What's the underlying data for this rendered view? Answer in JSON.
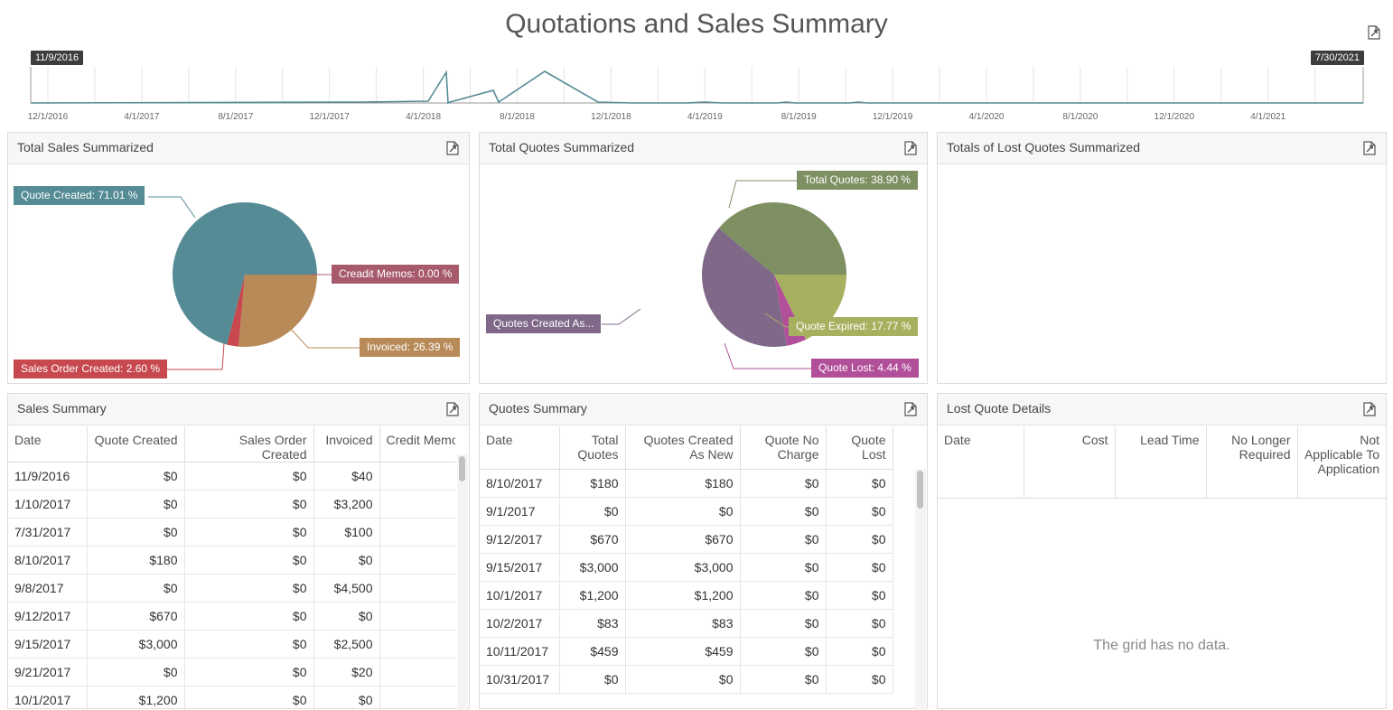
{
  "page": {
    "title": "Quotations and Sales Summary"
  },
  "timeline": {
    "start_date": "11/9/2016",
    "end_date": "7/30/2021",
    "ticks": [
      "12/1/2016",
      "4/1/2017",
      "8/1/2017",
      "12/1/2017",
      "4/1/2018",
      "8/1/2018",
      "12/1/2018",
      "4/1/2019",
      "8/1/2019",
      "12/1/2019",
      "4/1/2020",
      "8/1/2020",
      "12/1/2020",
      "4/1/2021"
    ]
  },
  "total_sales": {
    "title": "Total Sales Summarized",
    "slices": [
      {
        "label": "Quote Created: 71.01 %",
        "value": 71.01,
        "color": "#548b94"
      },
      {
        "label": "Creadit Memos: 0.00 %",
        "value": 0.0,
        "color": "#a85a6d"
      },
      {
        "label": "Invoiced: 26.39 %",
        "value": 26.39,
        "color": "#b78a57"
      },
      {
        "label": "Sales Order Created: 2.60 %",
        "value": 2.6,
        "color": "#c7484e"
      }
    ]
  },
  "total_quotes": {
    "title": "Total Quotes Summarized",
    "slices": [
      {
        "label": "Total Quotes: 38.90 %",
        "value": 38.9,
        "color": "#7e8f62"
      },
      {
        "label": "Quote Expired: 17.77 %",
        "value": 17.77,
        "color": "#a7b05e"
      },
      {
        "label": "Quote Lost: 4.44 %",
        "value": 4.44,
        "color": "#b24f9a"
      },
      {
        "label": "Quotes Created As...",
        "value": 38.89,
        "color": "#7f6888"
      }
    ]
  },
  "lost_quotes_totals": {
    "title": "Totals of Lost Quotes Summarized"
  },
  "sales_summary": {
    "title": "Sales Summary",
    "columns": [
      "Date",
      "Quote Created",
      "Sales Order Created",
      "Invoiced",
      "Credit Memo"
    ],
    "rows": [
      [
        "11/9/2016",
        "$0",
        "$0",
        "$40",
        "$"
      ],
      [
        "1/10/2017",
        "$0",
        "$0",
        "$3,200",
        "$"
      ],
      [
        "7/31/2017",
        "$0",
        "$0",
        "$100",
        "$"
      ],
      [
        "8/10/2017",
        "$180",
        "$0",
        "$0",
        "$"
      ],
      [
        "9/8/2017",
        "$0",
        "$0",
        "$4,500",
        "$"
      ],
      [
        "9/12/2017",
        "$670",
        "$0",
        "$0",
        "$"
      ],
      [
        "9/15/2017",
        "$3,000",
        "$0",
        "$2,500",
        "$"
      ],
      [
        "9/21/2017",
        "$0",
        "$0",
        "$20",
        "$"
      ],
      [
        "10/1/2017",
        "$1,200",
        "$0",
        "$0",
        "$"
      ]
    ]
  },
  "quotes_summary": {
    "title": "Quotes Summary",
    "columns": [
      "Date",
      "Total Quotes",
      "Quotes Created As New",
      "Quote No Charge",
      "Quote Lost"
    ],
    "rows": [
      [
        "8/10/2017",
        "$180",
        "$180",
        "$0",
        "$0"
      ],
      [
        "9/1/2017",
        "$0",
        "$0",
        "$0",
        "$0"
      ],
      [
        "9/12/2017",
        "$670",
        "$670",
        "$0",
        "$0"
      ],
      [
        "9/15/2017",
        "$3,000",
        "$3,000",
        "$0",
        "$0"
      ],
      [
        "10/1/2017",
        "$1,200",
        "$1,200",
        "$0",
        "$0"
      ],
      [
        "10/2/2017",
        "$83",
        "$83",
        "$0",
        "$0"
      ],
      [
        "10/11/2017",
        "$459",
        "$459",
        "$0",
        "$0"
      ],
      [
        "10/31/2017",
        "$0",
        "$0",
        "$0",
        "$0"
      ]
    ]
  },
  "lost_quote_details": {
    "title": "Lost Quote Details",
    "columns": [
      "Date",
      "Cost",
      "Lead Time",
      "No Longer Required",
      "Not Applicable To Application"
    ],
    "empty_text": "The grid has no data."
  },
  "icons": {
    "export": "export-icon"
  }
}
